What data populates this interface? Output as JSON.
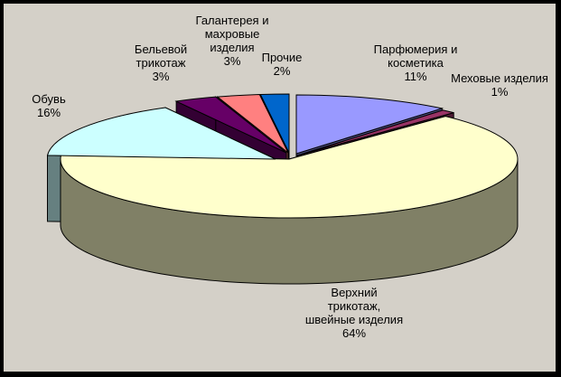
{
  "chart_data": {
    "type": "pie",
    "three_d": true,
    "legend": "none",
    "slices": [
      {
        "label_lines": [
          "Парфюмерия и",
          "косметика"
        ],
        "value": 11,
        "value_label": "11%",
        "color": "#9999ff"
      },
      {
        "label_lines": [
          "Меховые изделия"
        ],
        "value": 1,
        "value_label": "1%",
        "color": "#993366"
      },
      {
        "label_lines": [
          "Верхний",
          "трикотаж,",
          "швейные изделия"
        ],
        "value": 64,
        "value_label": "64%",
        "color": "#ffffcc"
      },
      {
        "label_lines": [
          "Обувь"
        ],
        "value": 16,
        "value_label": "16%",
        "color": "#ccffff"
      },
      {
        "label_lines": [
          "Бельевой",
          "трикотаж"
        ],
        "value": 3,
        "value_label": "3%",
        "color": "#660066"
      },
      {
        "label_lines": [
          "Галантерея и",
          "махровые",
          "изделия"
        ],
        "value": 3,
        "value_label": "3%",
        "color": "#ff8080"
      },
      {
        "label_lines": [
          "Прочие"
        ],
        "value": 2,
        "value_label": "2%",
        "color": "#0066cc"
      }
    ]
  }
}
